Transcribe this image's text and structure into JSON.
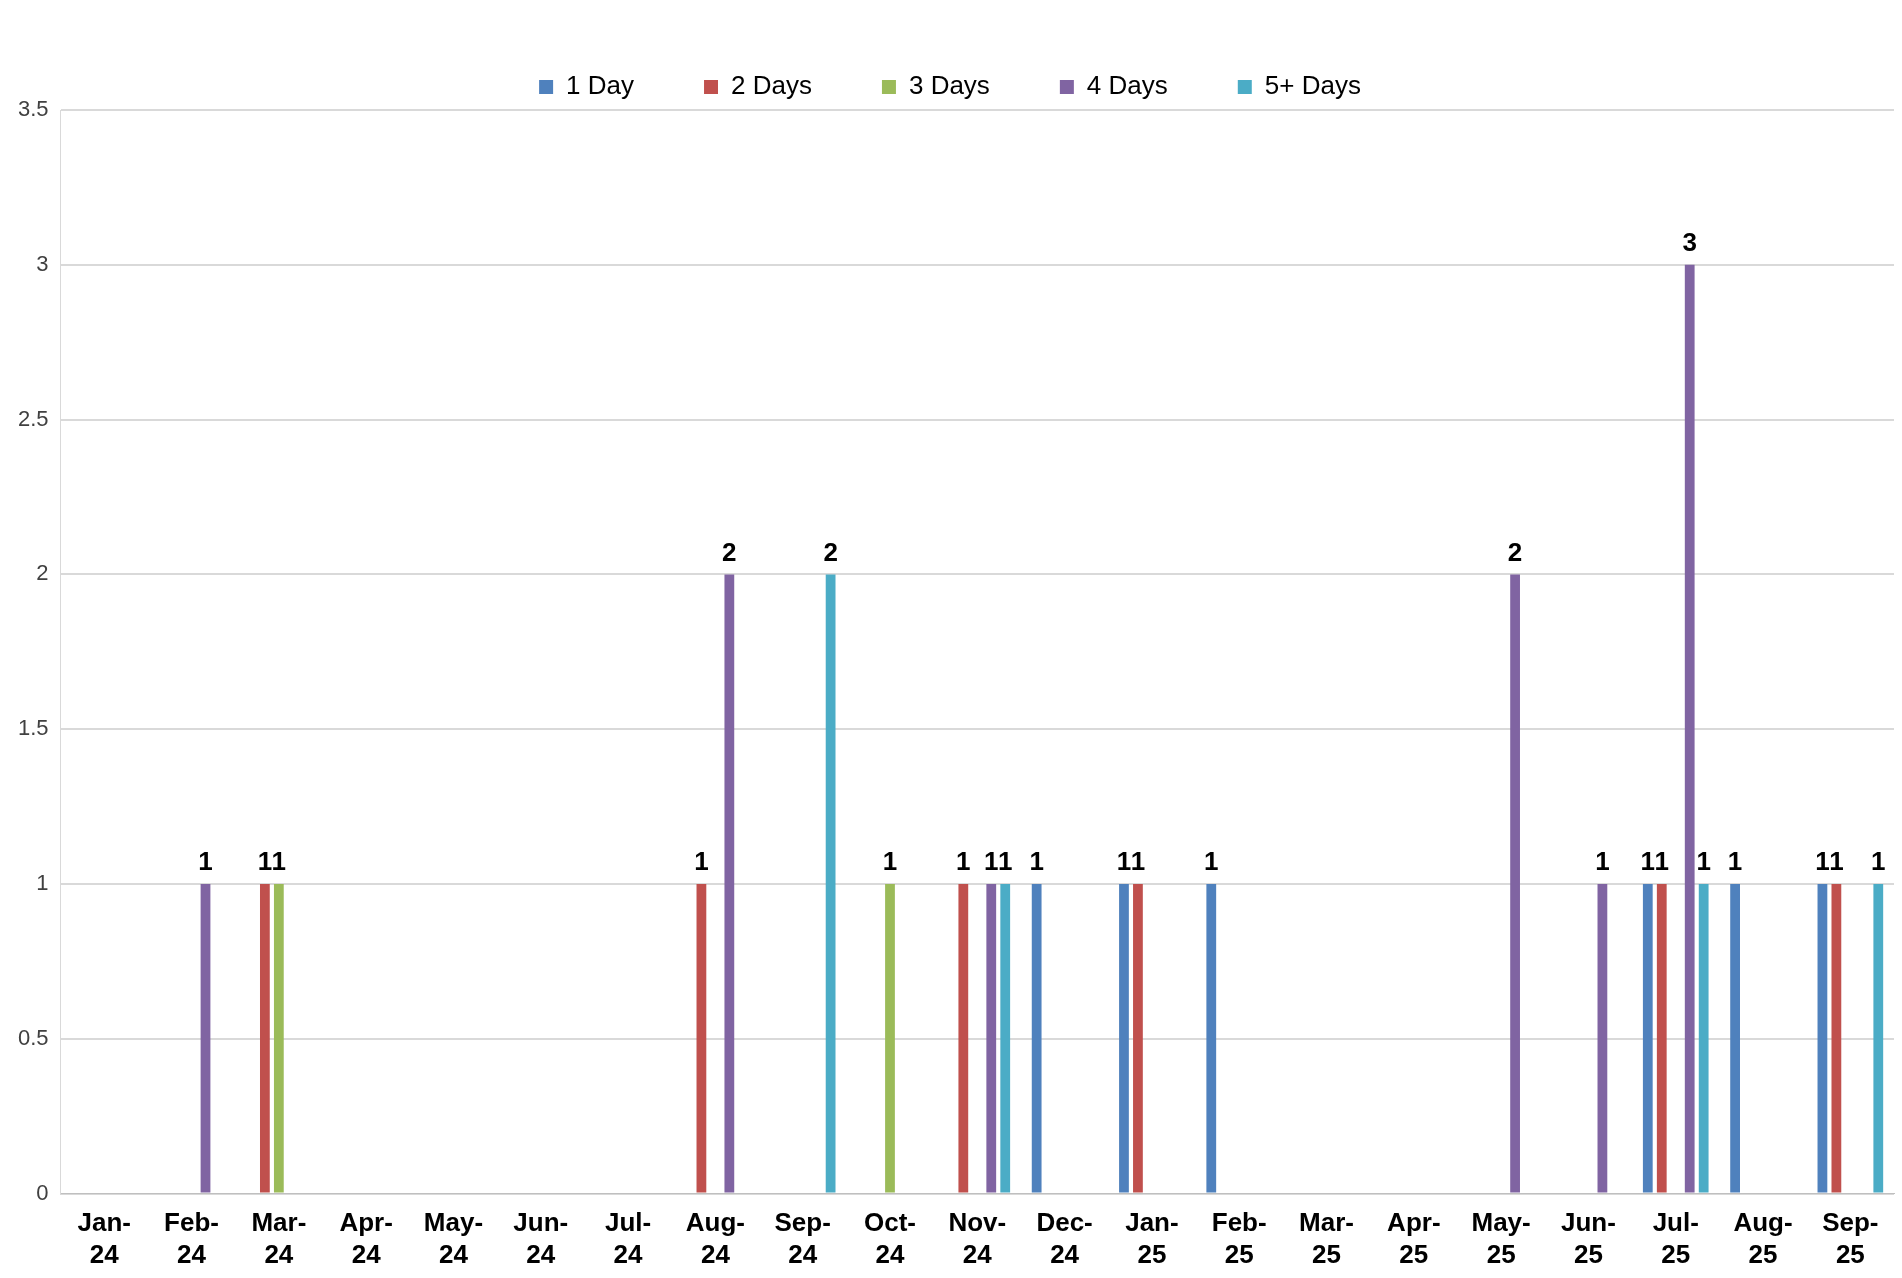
{
  "chart_data": {
    "type": "bar",
    "categories": [
      "Jan-24",
      "Feb-24",
      "Mar-24",
      "Apr-24",
      "May-24",
      "Jun-24",
      "Jul-24",
      "Aug-24",
      "Sep-24",
      "Oct-24",
      "Nov-24",
      "Dec-24",
      "Jan-25",
      "Feb-25",
      "Mar-25",
      "Apr-25",
      "May-25",
      "Jun-25",
      "Jul-25",
      "Aug-25",
      "Sep-25"
    ],
    "series": [
      {
        "name": "1 Day",
        "color": "#4f81bd",
        "values": [
          null,
          null,
          null,
          null,
          null,
          null,
          null,
          null,
          null,
          null,
          null,
          1,
          1,
          1,
          null,
          null,
          null,
          null,
          1,
          1,
          1
        ]
      },
      {
        "name": "2 Days",
        "color": "#c0504d",
        "values": [
          null,
          null,
          1,
          null,
          null,
          null,
          null,
          1,
          null,
          null,
          1,
          null,
          1,
          null,
          null,
          null,
          null,
          null,
          1,
          null,
          1
        ]
      },
      {
        "name": "3 Days",
        "color": "#9bbb59",
        "values": [
          null,
          null,
          1,
          null,
          null,
          null,
          null,
          null,
          null,
          1,
          null,
          null,
          null,
          null,
          null,
          null,
          null,
          null,
          null,
          null,
          null
        ]
      },
      {
        "name": "4 Days",
        "color": "#8064a2",
        "values": [
          null,
          1,
          null,
          null,
          null,
          null,
          null,
          2,
          null,
          null,
          1,
          null,
          null,
          null,
          null,
          null,
          2,
          1,
          3,
          null,
          null
        ]
      },
      {
        "name": "5+ Days",
        "color": "#4bacc6",
        "values": [
          null,
          null,
          null,
          null,
          null,
          null,
          null,
          null,
          2,
          null,
          1,
          null,
          null,
          null,
          null,
          null,
          null,
          null,
          1,
          null,
          1
        ]
      }
    ],
    "ylim": [
      0,
      3.5
    ],
    "yticks": [
      0,
      0.5,
      1,
      1.5,
      2,
      2.5,
      3,
      3.5
    ],
    "grid": "y",
    "legend": "top",
    "data_labels": true
  }
}
